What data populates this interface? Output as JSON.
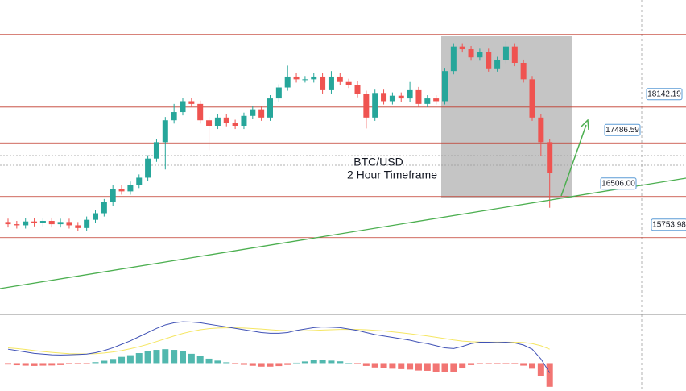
{
  "chart_data": {
    "type": "candlestick",
    "annotations": [
      "BTC/USD",
      "2 Hour Timeframe"
    ],
    "ylim": [
      14350,
      20100
    ],
    "up_color": "#26a69a",
    "down_color": "#ef5350",
    "level_color": "#c0392b",
    "open": [
      16040,
      16000,
      15980,
      16050,
      16020,
      16060,
      16000,
      16040,
      15980,
      15930,
      16080,
      16200,
      16400,
      16650,
      16600,
      16720,
      16850,
      17200,
      17500,
      17900,
      18050,
      18250,
      18200,
      17900,
      17800,
      17950,
      17850,
      17800,
      17980,
      18100,
      17950,
      18300,
      18500,
      18700,
      18650,
      18650,
      18700,
      18450,
      18700,
      18600,
      18550,
      18380,
      17950,
      18400,
      18250,
      18350,
      18300,
      18450,
      18200,
      18300,
      18250,
      18800,
      19250,
      19200,
      19050,
      19150,
      18850,
      19000,
      19250,
      18950,
      18650,
      17950,
      17500
    ],
    "high": [
      16100,
      16060,
      16110,
      16110,
      16120,
      16120,
      16100,
      16100,
      16040,
      16140,
      16260,
      16460,
      16710,
      16710,
      16780,
      16910,
      17260,
      17560,
      17960,
      18200,
      18310,
      18310,
      18260,
      17960,
      18010,
      18010,
      17910,
      18040,
      18160,
      18160,
      18360,
      18560,
      18900,
      18760,
      18710,
      18760,
      18760,
      18800,
      18760,
      18660,
      18610,
      18440,
      18460,
      18460,
      18410,
      18410,
      18600,
      18510,
      18360,
      18360,
      18860,
      19310,
      19310,
      19260,
      19210,
      19210,
      19060,
      19350,
      19310,
      19010,
      18710,
      18010,
      17560
    ],
    "low": [
      15940,
      15920,
      15920,
      15960,
      15960,
      15940,
      15940,
      15920,
      15870,
      15870,
      16020,
      16140,
      16340,
      16540,
      16540,
      16660,
      16790,
      17140,
      17000,
      17840,
      17990,
      18140,
      17840,
      17350,
      17740,
      17790,
      17740,
      17740,
      17920,
      17890,
      17890,
      18240,
      18440,
      18590,
      18590,
      18590,
      18390,
      18390,
      18540,
      18490,
      18320,
      17750,
      17890,
      18190,
      18190,
      18240,
      18240,
      18140,
      18140,
      18190,
      18190,
      18740,
      19140,
      18990,
      18990,
      18790,
      18790,
      18940,
      18890,
      18590,
      17890,
      17250,
      16300
    ],
    "close": [
      16000,
      15980,
      16050,
      16020,
      16060,
      16000,
      16040,
      15980,
      15930,
      16080,
      16200,
      16400,
      16650,
      16600,
      16720,
      16850,
      17200,
      17500,
      17900,
      18050,
      18250,
      18200,
      17900,
      17800,
      17950,
      17850,
      17800,
      17980,
      18100,
      17950,
      18300,
      18500,
      18700,
      18650,
      18650,
      18700,
      18450,
      18700,
      18600,
      18550,
      18380,
      17950,
      18400,
      18250,
      18350,
      18300,
      18450,
      18200,
      18300,
      18250,
      18800,
      19250,
      19200,
      19050,
      19150,
      18850,
      19000,
      19250,
      18950,
      18650,
      17950,
      17500,
      16930
    ],
    "levels": [
      {
        "value": 19470
      },
      18142.19,
      17486.59,
      {
        "value": 16506,
        "label": "16506.00"
      },
      15753.98
    ],
    "macd": {
      "ylim": [
        -200,
        350
      ],
      "macd_color": "#3f51b5",
      "signal_color": "#f5e663",
      "macd_line": [
        100,
        90,
        80,
        70,
        65,
        60,
        58,
        60,
        62,
        65,
        75,
        90,
        110,
        135,
        160,
        190,
        220,
        250,
        275,
        290,
        297,
        295,
        290,
        280,
        270,
        260,
        250,
        240,
        230,
        220,
        215,
        215,
        220,
        235,
        245,
        255,
        260,
        258,
        255,
        245,
        235,
        220,
        205,
        195,
        185,
        175,
        165,
        150,
        140,
        125,
        110,
        105,
        120,
        140,
        150,
        150,
        148,
        150,
        145,
        130,
        100,
        30,
        -70
      ],
      "signal_line": [
        110,
        105,
        98,
        90,
        83,
        77,
        72,
        68,
        66,
        66,
        68,
        73,
        80,
        90,
        103,
        118,
        135,
        155,
        175,
        195,
        213,
        228,
        240,
        248,
        252,
        254,
        254,
        252,
        249,
        245,
        240,
        236,
        233,
        232,
        233,
        235,
        238,
        240,
        242,
        243,
        242,
        240,
        236,
        231,
        225,
        218,
        211,
        203,
        195,
        186,
        176,
        166,
        158,
        154,
        152,
        151,
        151,
        151,
        150,
        148,
        140,
        125,
        100
      ],
      "histogram": [
        -10,
        -15,
        -18,
        -20,
        -18,
        -17,
        -14,
        -8,
        -4,
        -1,
        7,
        17,
        30,
        45,
        57,
        72,
        85,
        95,
        100,
        95,
        84,
        67,
        50,
        32,
        18,
        6,
        -4,
        -12,
        -19,
        -25,
        -25,
        -21,
        -13,
        3,
        12,
        20,
        22,
        18,
        13,
        2,
        -7,
        -20,
        -31,
        -36,
        -40,
        -43,
        -46,
        -53,
        -55,
        -61,
        -66,
        -61,
        -38,
        -14,
        -2,
        -1,
        -3,
        -1,
        -5,
        -18,
        -40,
        -95,
        -170
      ]
    }
  }
}
